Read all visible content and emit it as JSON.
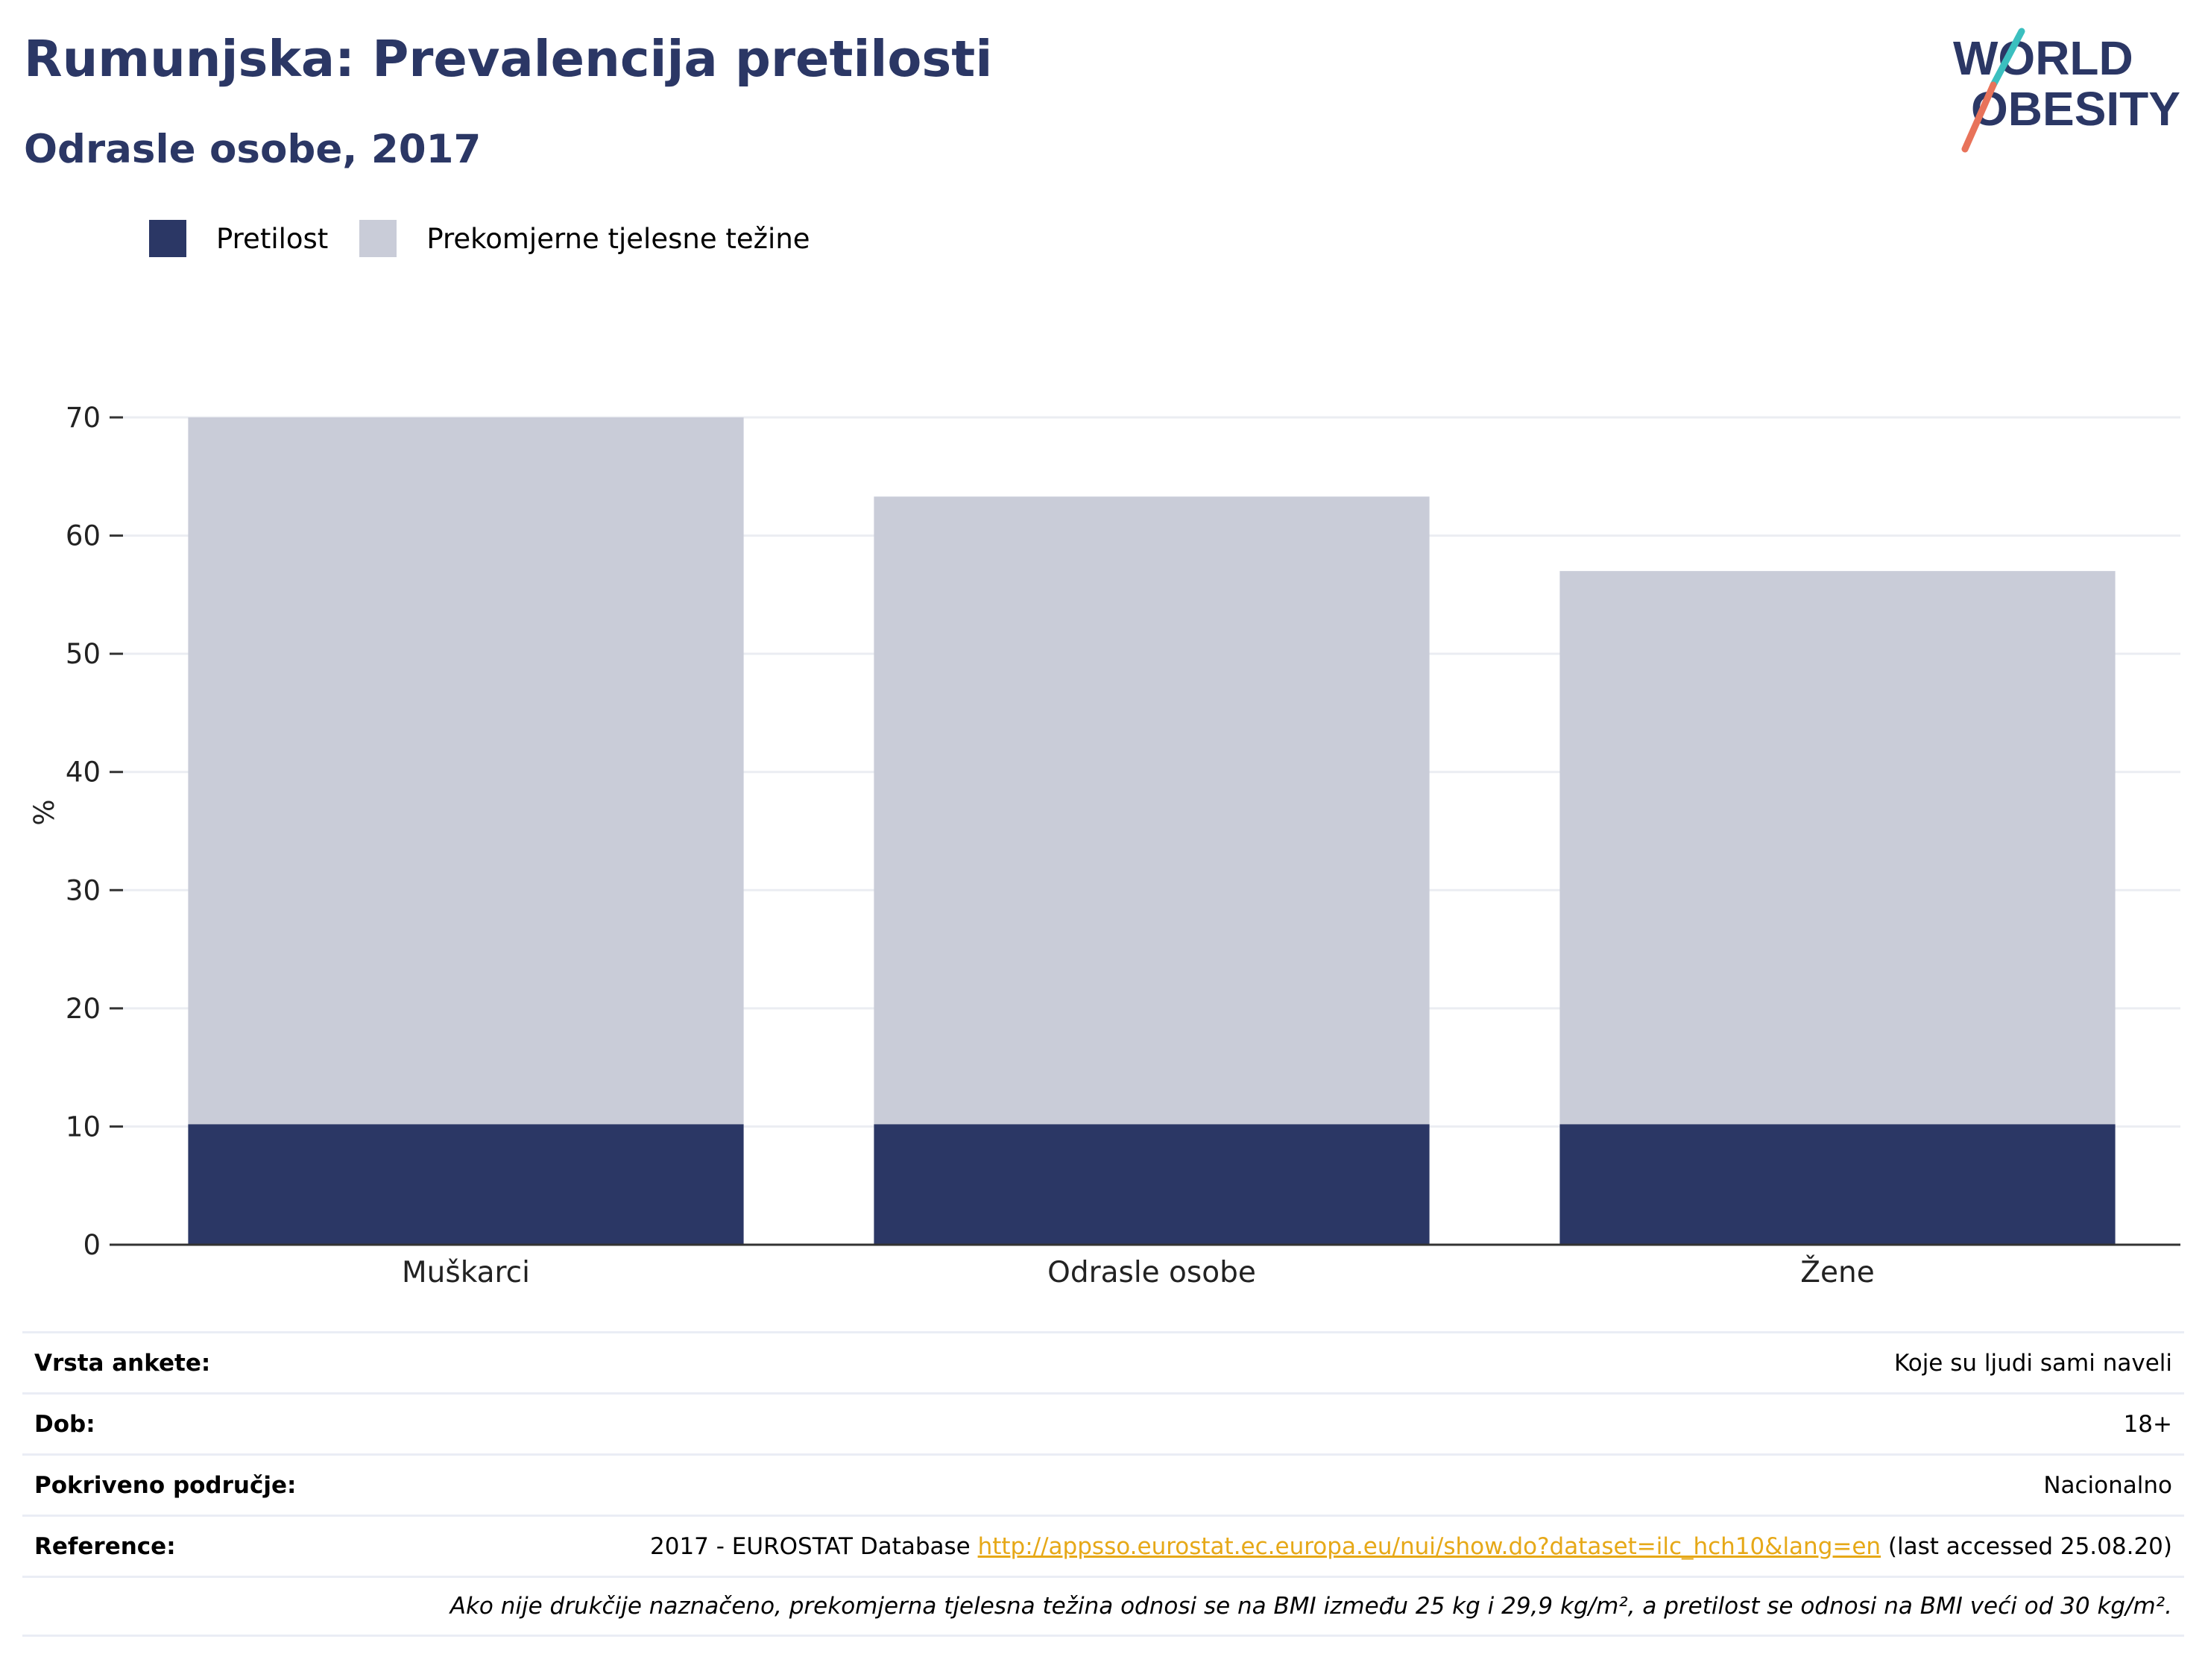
{
  "title": "Rumunjska: Prevalencija pretilosti",
  "subtitle": "Odrasle osobe, 2017",
  "logo": {
    "line1": "WORLD",
    "line2": "OBESITY"
  },
  "colors": {
    "obesity": "#2b3765",
    "overweight": "#c9ccd8",
    "title": "#2b3765",
    "link": "#e6a817",
    "logo_teal": "#3bbfbf",
    "logo_coral": "#e8735a"
  },
  "chart_data": {
    "type": "bar",
    "stacked": true,
    "categories": [
      "Muškarci",
      "Odrasle osobe",
      "Žene"
    ],
    "series": [
      {
        "name": "Pretilost",
        "values": [
          10.2,
          10.2,
          10.2
        ]
      },
      {
        "name": "Prekomjerne tjelesne težine",
        "values": [
          59.8,
          53.1,
          46.8
        ]
      }
    ],
    "ylabel": "%",
    "ylim": [
      0,
      70
    ],
    "yticks": [
      0,
      10,
      20,
      30,
      40,
      50,
      60,
      70
    ],
    "grid": true,
    "legend_position": "top-left"
  },
  "meta": {
    "survey_label": "Vrsta ankete:",
    "survey_value": "Koje su ljudi sami naveli",
    "age_label": "Dob:",
    "age_value": "18+",
    "coverage_label": "Pokriveno područje:",
    "coverage_value": "Nacionalno",
    "reference_label": "Reference:",
    "reference_prefix": "2017 - EUROSTAT Database ",
    "reference_link": "http://appsso.eurostat.ec.europa.eu/nui/show.do?dataset=ilc_hch10&lang=en",
    "reference_suffix": " (last accessed 25.08.20)",
    "note": "Ako nije drukčije naznačeno, prekomjerna tjelesna težina odnosi se na BMI između 25 kg i 29,9 kg/m², a pretilost se odnosi na BMI veći od 30 kg/m²."
  }
}
